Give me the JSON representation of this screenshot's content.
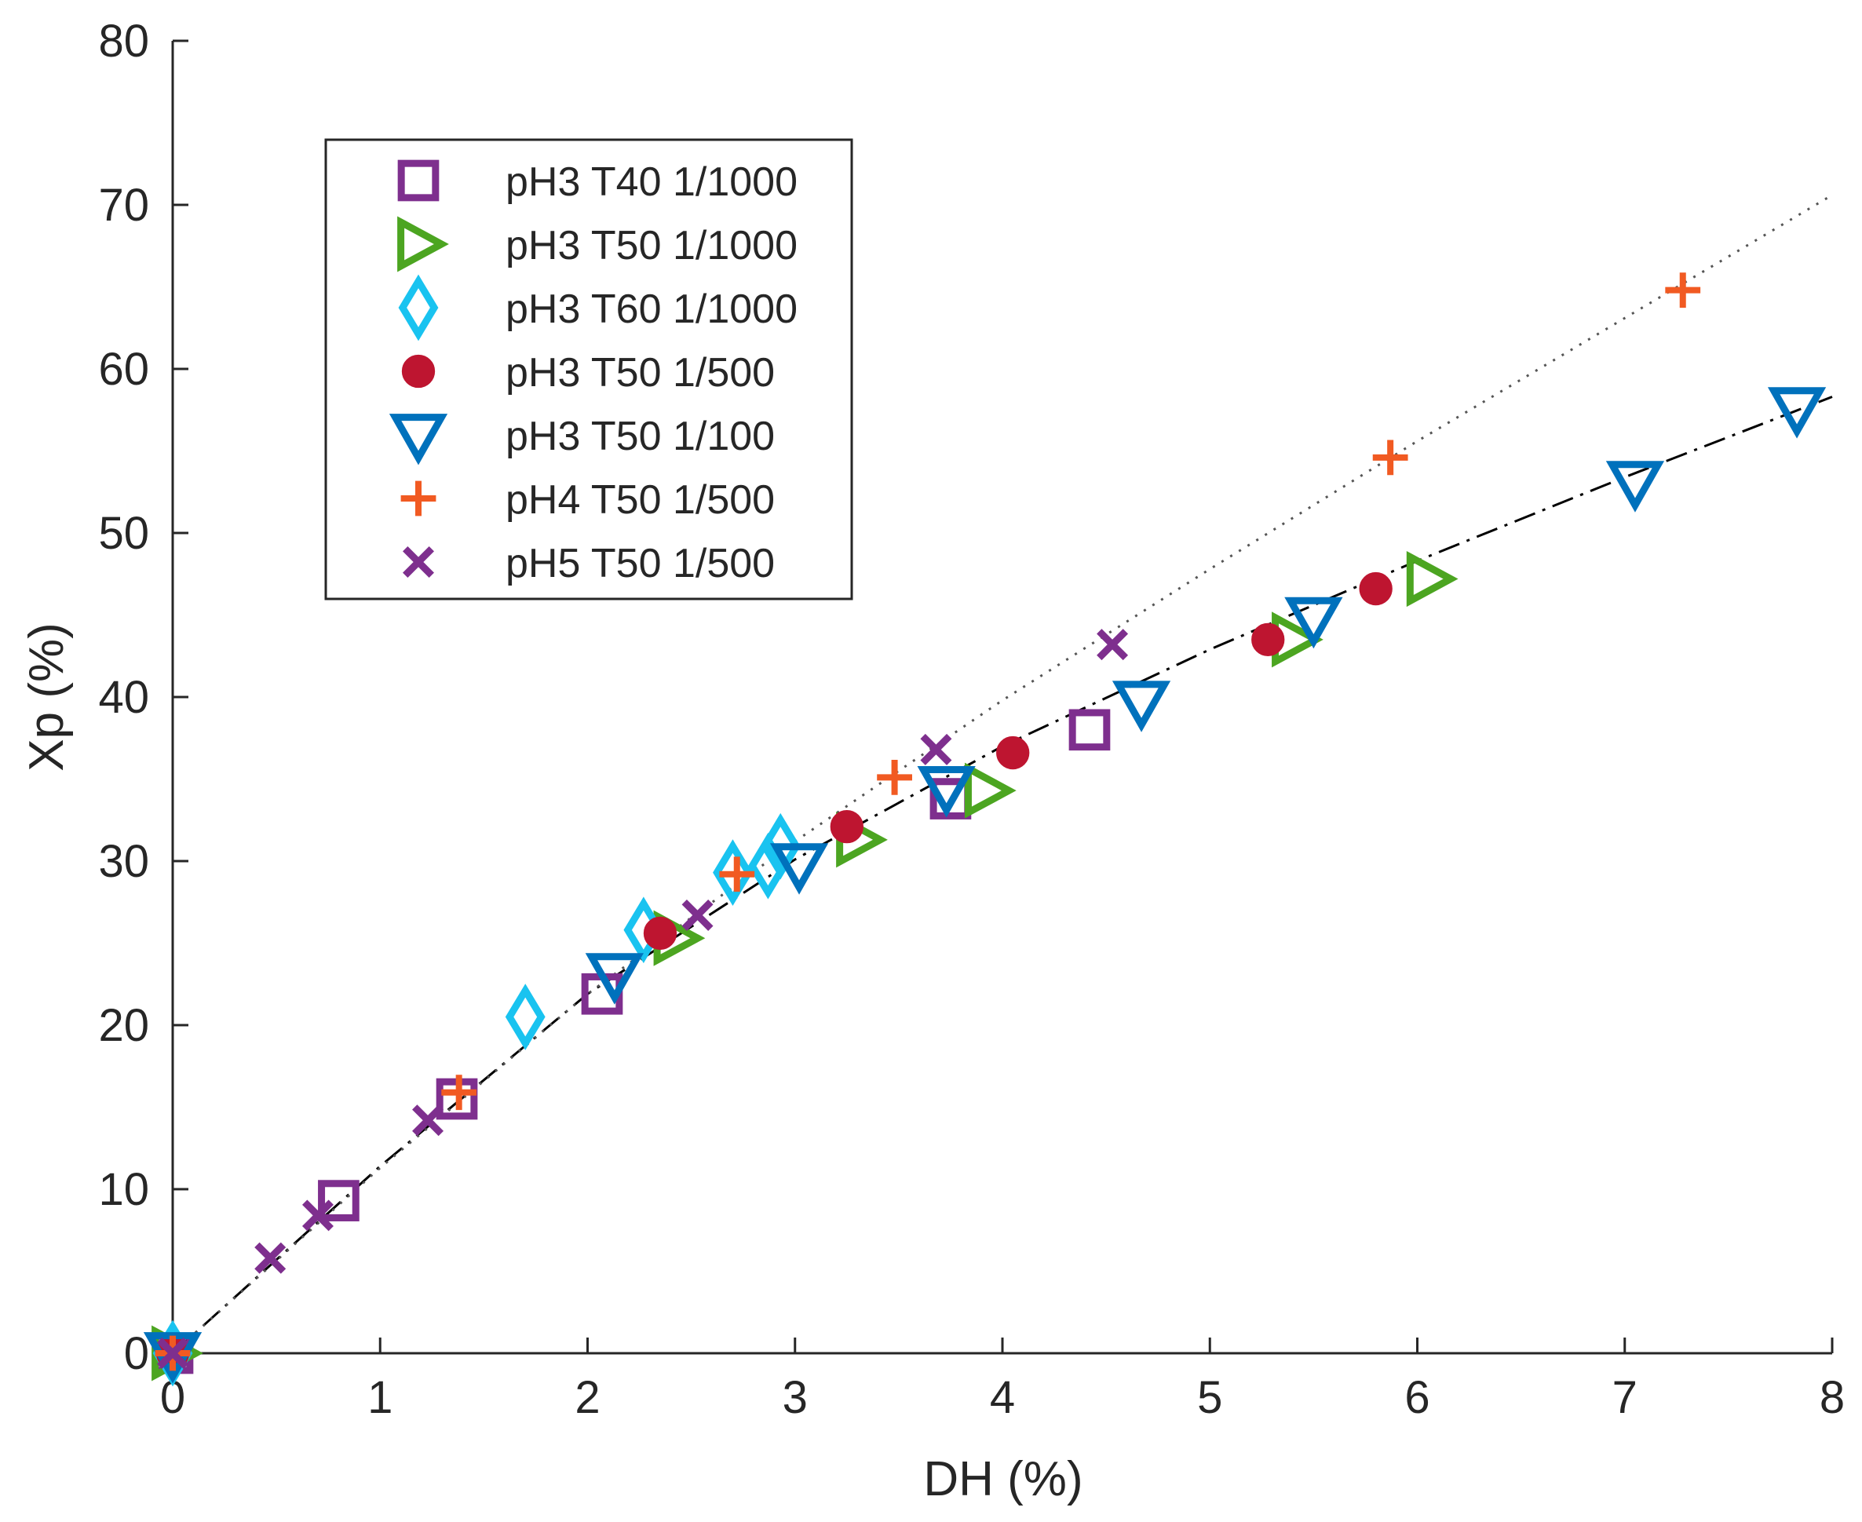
{
  "chart_data": {
    "type": "scatter",
    "title": "",
    "xlabel": "DH (%)",
    "ylabel": "Xp (%)",
    "xlim": [
      0,
      8
    ],
    "ylim": [
      0,
      80
    ],
    "xticks": [
      0,
      1,
      2,
      3,
      4,
      5,
      6,
      7,
      8
    ],
    "yticks": [
      0,
      10,
      20,
      30,
      40,
      50,
      60,
      70,
      80
    ],
    "grid": false,
    "legend_position": "top-left",
    "series": [
      {
        "name": "pH3 T40 1/1000",
        "marker": "square",
        "color": "#7E2F8E",
        "points": [
          [
            0,
            0
          ],
          [
            0.8,
            9.3
          ],
          [
            1.37,
            15.5
          ],
          [
            2.07,
            21.9
          ],
          [
            3.75,
            33.8
          ],
          [
            4.42,
            38
          ]
        ]
      },
      {
        "name": "pH3 T50 1/1000",
        "marker": "triangle-right",
        "color": "#4CA521",
        "points": [
          [
            0,
            0
          ],
          [
            2.42,
            25.3
          ],
          [
            3.3,
            31.3
          ],
          [
            3.92,
            34.3
          ],
          [
            5.4,
            43.5
          ],
          [
            6.05,
            47.2
          ]
        ]
      },
      {
        "name": "pH3 T60 1/1000",
        "marker": "diamond",
        "color": "#19C3F0",
        "points": [
          [
            0,
            0
          ],
          [
            1.7,
            20.5
          ],
          [
            2.27,
            25.8
          ],
          [
            2.7,
            29.3
          ],
          [
            2.87,
            29.7
          ],
          [
            2.93,
            30.9
          ]
        ]
      },
      {
        "name": "pH3 T50 1/500",
        "marker": "circle",
        "color": "#BE1530",
        "points": [
          [
            0,
            0
          ],
          [
            2.35,
            25.6
          ],
          [
            3.25,
            32.1
          ],
          [
            4.05,
            36.6
          ],
          [
            5.28,
            43.5
          ],
          [
            5.8,
            46.6
          ]
        ]
      },
      {
        "name": "pH3 T50 1/100",
        "marker": "triangle-down",
        "color": "#0071BC",
        "points": [
          [
            0,
            0
          ],
          [
            2.13,
            23.1
          ],
          [
            3.02,
            29.8
          ],
          [
            3.73,
            34.5
          ],
          [
            4.67,
            39.7
          ],
          [
            5.5,
            44.8
          ],
          [
            7.05,
            53.1
          ],
          [
            7.83,
            57.6
          ]
        ]
      },
      {
        "name": "pH4 T50 1/500",
        "marker": "plus",
        "color": "#F15A22",
        "points": [
          [
            0,
            0
          ],
          [
            1.38,
            15.9
          ],
          [
            2.72,
            29.2
          ],
          [
            3.48,
            35.1
          ],
          [
            5.87,
            54.6
          ],
          [
            7.28,
            64.8
          ]
        ]
      },
      {
        "name": "pH5 T50 1/500",
        "marker": "x",
        "color": "#7E2F8E",
        "points": [
          [
            0,
            0
          ],
          [
            0.47,
            5.8
          ],
          [
            0.7,
            8.4
          ],
          [
            1.23,
            14.2
          ],
          [
            2.53,
            26.7
          ],
          [
            3.68,
            36.8
          ],
          [
            4.53,
            43.2
          ]
        ]
      }
    ],
    "fit_lines": [
      {
        "name": "pH3 fit",
        "style": "dash-dot",
        "color": "#000000",
        "points": [
          [
            0,
            0
          ],
          [
            1,
            11.4
          ],
          [
            2,
            21.9
          ],
          [
            3,
            30.1
          ],
          [
            4,
            37.0
          ],
          [
            5,
            42.9
          ],
          [
            6,
            48.3
          ],
          [
            7,
            53.4
          ],
          [
            8,
            58.3
          ]
        ]
      },
      {
        "name": "pH4/pH5 fit",
        "style": "dotted",
        "color": "#555555",
        "points": [
          [
            0,
            0
          ],
          [
            1,
            11.3
          ],
          [
            2,
            21.9
          ],
          [
            3,
            31.2
          ],
          [
            4,
            39.8
          ],
          [
            5,
            47.8
          ],
          [
            6,
            55.6
          ],
          [
            7,
            63.1
          ],
          [
            8,
            70.6
          ]
        ]
      }
    ]
  }
}
